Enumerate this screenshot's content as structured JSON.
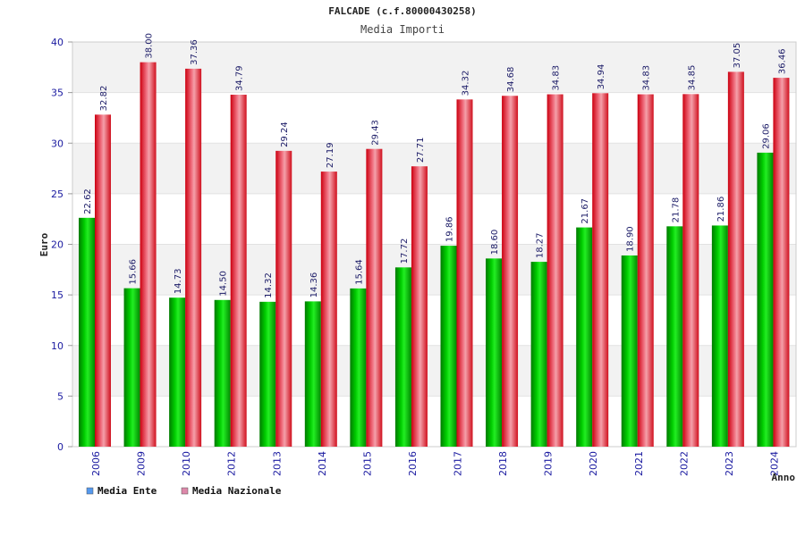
{
  "chart_data": {
    "type": "bar",
    "title": "FALCADE (c.f.80000430258)",
    "subtitle": "Media Importi",
    "xlabel": "Anno",
    "ylabel": "Euro",
    "ylim": [
      0,
      40
    ],
    "yticks": [
      0,
      5,
      10,
      15,
      20,
      25,
      30,
      35,
      40
    ],
    "categories": [
      "2006",
      "2009",
      "2010",
      "2012",
      "2013",
      "2014",
      "2015",
      "2016",
      "2017",
      "2018",
      "2019",
      "2020",
      "2021",
      "2022",
      "2023",
      "2024"
    ],
    "series": [
      {
        "name": "Media Ente",
        "color": "#00bb00",
        "values": [
          22.62,
          15.66,
          14.73,
          14.5,
          14.32,
          14.36,
          15.64,
          17.72,
          19.86,
          18.6,
          18.27,
          21.67,
          18.9,
          21.78,
          21.86,
          29.06
        ],
        "labels": [
          "22.62",
          "15.66",
          "14.73",
          "14.50",
          "14.32",
          "14.36",
          "15.64",
          "17.72",
          "19.86",
          "18.60",
          "18.27",
          "21.67",
          "18.90",
          "21.78",
          "21.86",
          "29.06"
        ]
      },
      {
        "name": "Media Nazionale",
        "color": "#ee1122",
        "values": [
          32.82,
          38.0,
          37.36,
          34.79,
          29.24,
          27.19,
          29.43,
          27.71,
          34.32,
          34.68,
          34.83,
          34.94,
          34.83,
          34.85,
          37.05,
          36.46
        ],
        "labels": [
          "32.82",
          "38.00",
          "37.36",
          "34.79",
          "29.24",
          "27.19",
          "29.43",
          "27.71",
          "34.32",
          "34.68",
          "34.83",
          "34.94",
          "34.83",
          "34.85",
          "37.05",
          "36.46"
        ]
      }
    ],
    "legend": {
      "position": "bottom-left",
      "items": [
        {
          "label": "Media Ente",
          "color": "#5599ee"
        },
        {
          "label": "Media Nazionale",
          "color": "#dd88aa"
        }
      ]
    },
    "grid": true,
    "band_colors": [
      "#f2f2f2",
      "#ffffff"
    ]
  }
}
